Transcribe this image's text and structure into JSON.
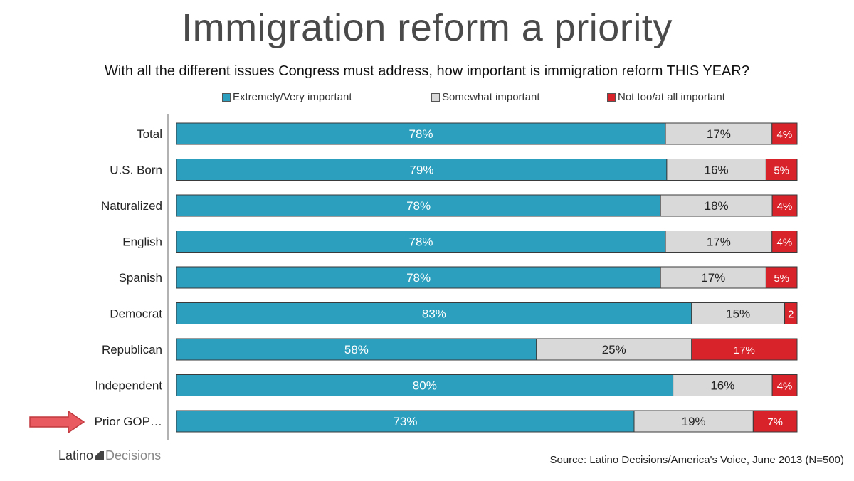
{
  "title": "Immigration reform a priority",
  "subtitle": "With all the different issues Congress must address, how important is immigration reform THIS YEAR?",
  "source": "Source: Latino Decisions/America's Voice, June 2013 (N=500)",
  "logo": {
    "part1": "Latino",
    "part2": "Decisions"
  },
  "colors": {
    "very": "#2b9fbd",
    "somewhat": "#d9d9d9",
    "not": "#d8232a",
    "arrow": "#e85a5f"
  },
  "chart_data": {
    "type": "bar",
    "orientation": "horizontal",
    "stacked": true,
    "xlim": [
      0,
      100
    ],
    "grid": false,
    "legend_position": "top",
    "categories": [
      "Total",
      "U.S. Born",
      "Naturalized",
      "English",
      "Spanish",
      "Democrat",
      "Republican",
      "Independent",
      "Prior GOP…"
    ],
    "series": [
      {
        "name": "Extremely/Very important",
        "values": [
          78,
          79,
          78,
          78,
          78,
          83,
          58,
          80,
          73
        ],
        "labels": [
          "78%",
          "79%",
          "78%",
          "78%",
          "78%",
          "83%",
          "58%",
          "80%",
          "73%"
        ]
      },
      {
        "name": "Somewhat important",
        "values": [
          17,
          16,
          18,
          17,
          17,
          15,
          25,
          16,
          19
        ],
        "labels": [
          "17%",
          "16%",
          "18%",
          "17%",
          "17%",
          "15%",
          "25%",
          "16%",
          "19%"
        ]
      },
      {
        "name": "Not too/at all important",
        "values": [
          4,
          5,
          4,
          4,
          5,
          2,
          17,
          4,
          7
        ],
        "labels": [
          "4%",
          "5%",
          "4%",
          "4%",
          "5%",
          "2",
          "17%",
          "4%",
          "7%"
        ]
      }
    ]
  }
}
